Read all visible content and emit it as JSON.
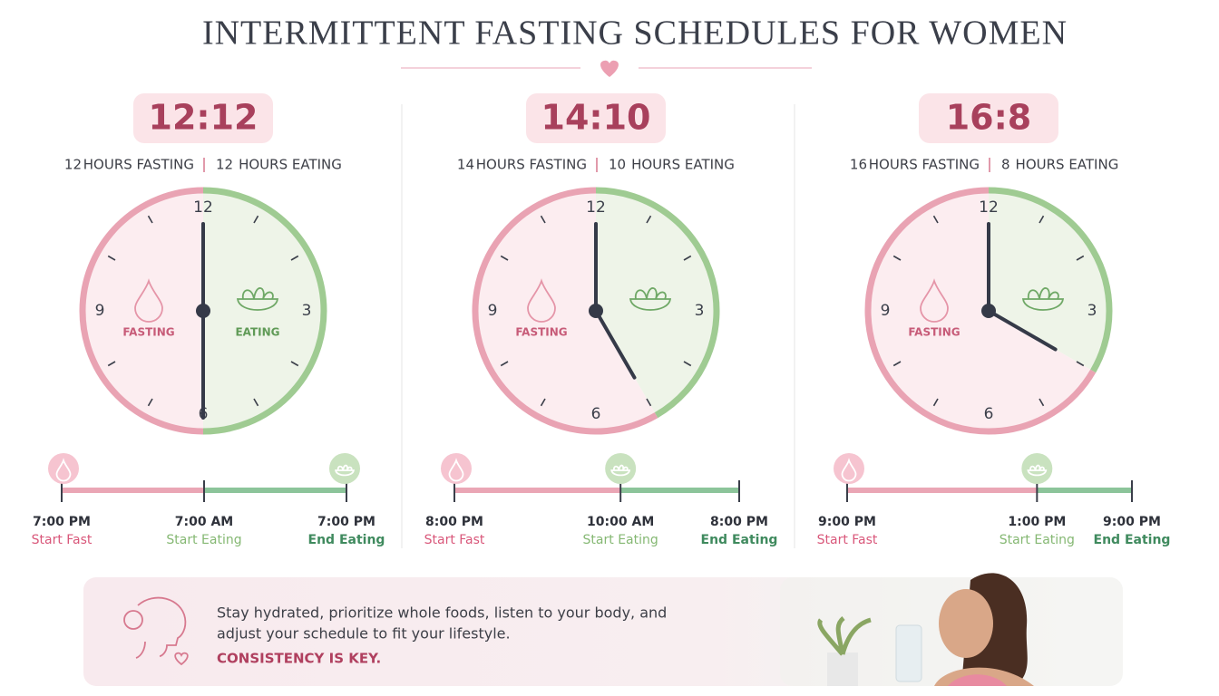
{
  "header": {
    "title": "INTERMITTENT FASTING SCHEDULES FOR WOMEN"
  },
  "schedules": [
    {
      "ratio": "12:12",
      "fasting_hours": 12,
      "fasting_text": "HOURS FASTING",
      "eating_hours": 12,
      "eating_text": "HOURS EATING",
      "clock_numbers": [
        "12",
        "3",
        "6",
        "9"
      ],
      "zone_labels": [
        "FASTING",
        "EATING"
      ],
      "timeline": [
        {
          "time": "7:00 PM",
          "label": "Start Fast"
        },
        {
          "time": "7:00 AM",
          "label": "Start Eating"
        },
        {
          "time": "7:00 PM",
          "label": "End Eating"
        }
      ]
    },
    {
      "ratio": "14:10",
      "fasting_hours": 14,
      "fasting_text": "HOURS FASTING",
      "eating_hours": 10,
      "eating_text": "HOURS EATING",
      "clock_numbers": [
        "12",
        "3",
        "6",
        "9"
      ],
      "zone_labels": [
        "FASTING"
      ],
      "timeline": [
        {
          "time": "8:00 PM",
          "label": "Start Fast"
        },
        {
          "time": "10:00 AM",
          "label": "Start Eating"
        },
        {
          "time": "8:00 PM",
          "label": "End Eating"
        }
      ]
    },
    {
      "ratio": "16:8",
      "fasting_hours": 16,
      "fasting_text": "HOURS FASTING",
      "eating_hours": 8,
      "eating_text": "HOURS EATING",
      "clock_numbers": [
        "12",
        "3",
        "6",
        "9"
      ],
      "zone_labels": [
        "FASTING"
      ],
      "timeline": [
        {
          "time": "9:00 PM",
          "label": "Start Fast"
        },
        {
          "time": "1:00 PM",
          "label": "Start Eating"
        },
        {
          "time": "9:00 PM",
          "label": "End Eating"
        }
      ]
    }
  ],
  "tip": {
    "lines": [
      "Stay hydrated, prioritize whole foods, listen to your body, and",
      "adjust your schedule to fit your lifestyle."
    ],
    "emphasis": "CONSISTENCY IS KEY."
  }
}
